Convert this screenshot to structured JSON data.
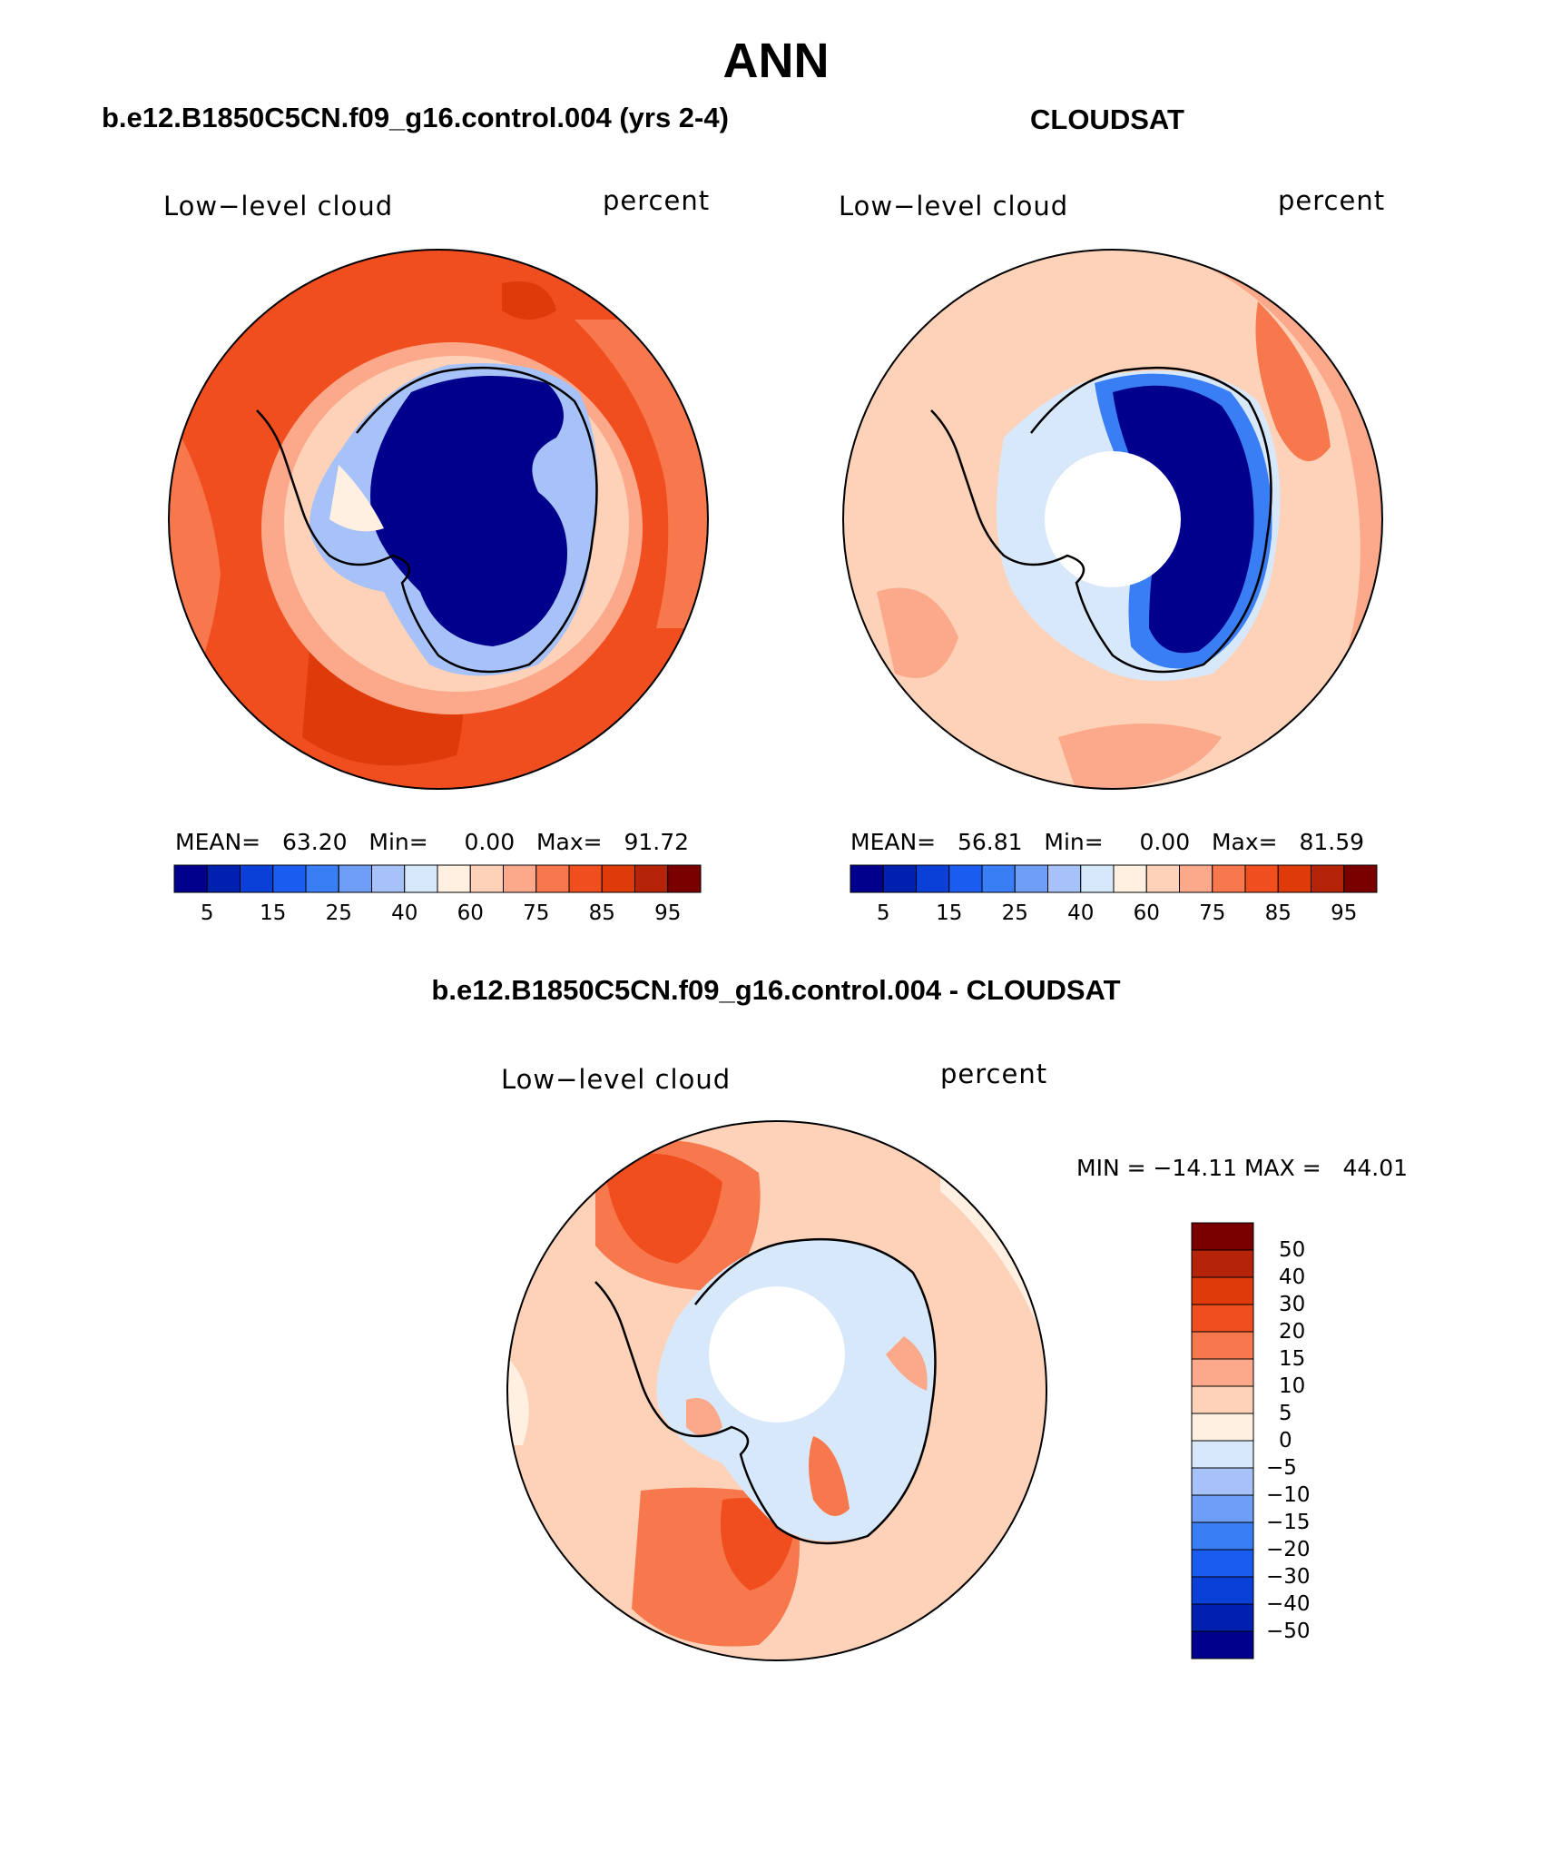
{
  "page": {
    "title": "ANN",
    "left_title": "b.e12.B1850C5CN.f09_g16.control.004 (yrs 2-4)",
    "right_title": "CLOUDSAT",
    "diff_title": "b.e12.B1850C5CN.f09_g16.control.004 - CLOUDSAT"
  },
  "panels": [
    {
      "variable": "Low−level cloud",
      "units": "percent",
      "stats": {
        "mean_label": "MEAN=",
        "mean": "63.20",
        "min_label": "Min=",
        "min": "0.00",
        "max_label": "Max=",
        "max": "91.72"
      }
    },
    {
      "variable": "Low−level cloud",
      "units": "percent",
      "stats": {
        "mean_label": "MEAN=",
        "mean": "56.81",
        "min_label": "Min=",
        "min": "0.00",
        "max_label": "Max=",
        "max": "81.59"
      }
    },
    {
      "variable": "Low−level cloud",
      "units": "percent",
      "minmax": "MIN = −14.11 MAX =   44.01"
    }
  ],
  "colorbar_abs": {
    "colors": [
      "#00008c",
      "#0020b0",
      "#0a3fd8",
      "#1b5cf0",
      "#3a7ef5",
      "#6e9ef6",
      "#a7c2f8",
      "#d8e8fb",
      "#fff0e2",
      "#fdd2b9",
      "#fba98a",
      "#f8784d",
      "#f04e1e",
      "#de3a0a",
      "#b52408",
      "#7a0000"
    ],
    "labels": [
      "5",
      "15",
      "25",
      "40",
      "60",
      "75",
      "85",
      "95"
    ]
  },
  "colorbar_diff": {
    "colors": [
      "#7a0000",
      "#b52408",
      "#de3a0a",
      "#f04e1e",
      "#f8784d",
      "#fba98a",
      "#fdd2b9",
      "#fff0e2",
      "#d8e8fb",
      "#a7c2f8",
      "#6e9ef6",
      "#3a7ef5",
      "#1b5cf0",
      "#0a3fd8",
      "#0020b0",
      "#00008c"
    ],
    "labels": [
      "50",
      "40",
      "30",
      "20",
      "15",
      "10",
      "5",
      "0",
      "−5",
      "−10",
      "−15",
      "−20",
      "−30",
      "−40",
      "−50"
    ]
  },
  "colors": {
    "ocean_high": "#f04e1e",
    "ice_low": "#00008c",
    "diff_pos": "#fba98a",
    "diff_neg": "#d8e8fb"
  }
}
